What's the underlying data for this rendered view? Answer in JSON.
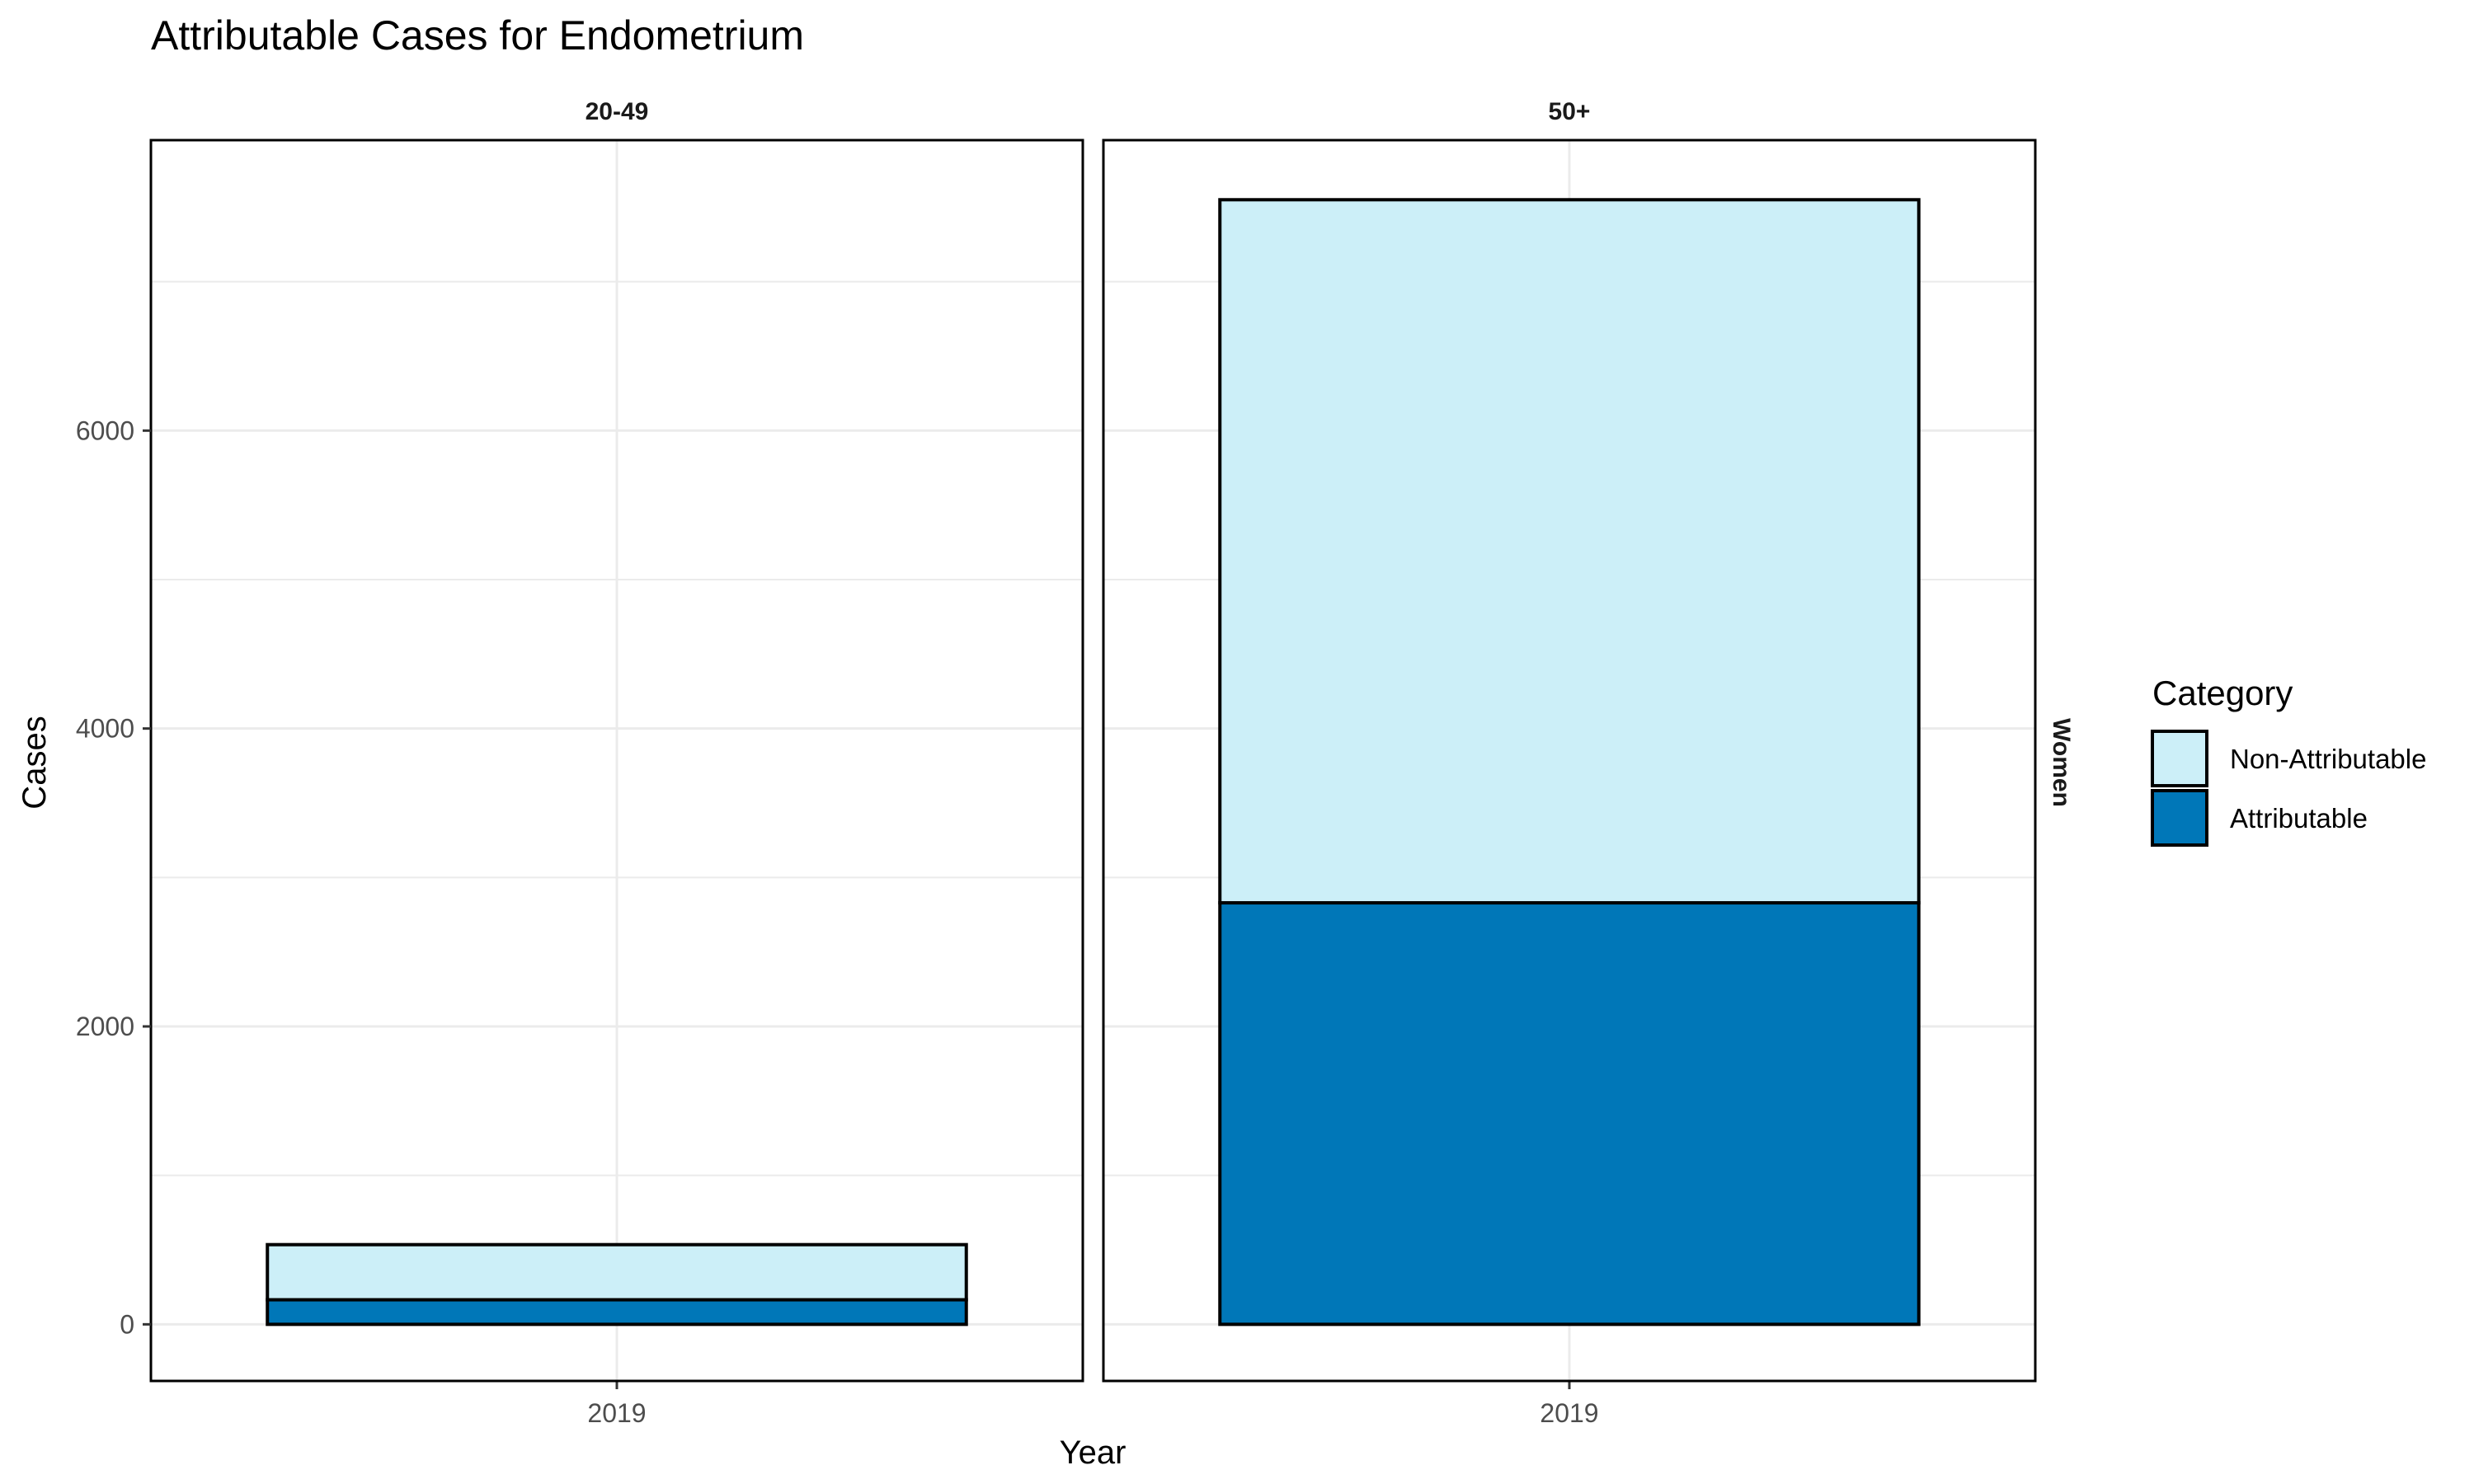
{
  "chart_data": {
    "type": "bar",
    "stacked": true,
    "title": "Attributable Cases for Endometrium",
    "xlabel": "Year",
    "ylabel": "Cases",
    "row_strip": "Women",
    "ylim": [
      -380,
      7950
    ],
    "y_ticks": [
      0,
      2000,
      4000,
      6000
    ],
    "y_minor_ticks": [
      1000,
      3000,
      5000,
      7000
    ],
    "grid": true,
    "legend": {
      "title": "Category",
      "position": "right",
      "entries": [
        {
          "label": "Non-Attributable",
          "color": "#CCEFF8"
        },
        {
          "label": "Attributable",
          "color": "#0077B8"
        }
      ]
    },
    "panels": [
      {
        "label": "20-49",
        "categories": [
          "2019"
        ],
        "series": [
          {
            "name": "Attributable",
            "values": [
              165
            ]
          },
          {
            "name": "Non-Attributable",
            "values": [
              370
            ]
          }
        ]
      },
      {
        "label": "50+",
        "categories": [
          "2019"
        ],
        "series": [
          {
            "name": "Attributable",
            "values": [
              2830
            ]
          },
          {
            "name": "Non-Attributable",
            "values": [
              4720
            ]
          }
        ]
      }
    ]
  }
}
